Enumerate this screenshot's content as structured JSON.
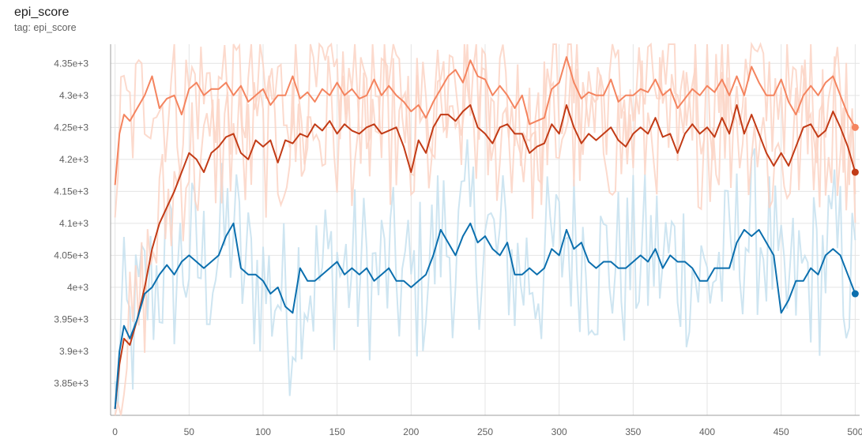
{
  "card": {
    "title": "epi_score",
    "tag": "tag: epi_score"
  },
  "colors": {
    "light_orange": "#f4845f",
    "dark_orange": "#c23b16",
    "blue": "#0b6fae",
    "light_orange_raw": "#fcd3c4",
    "blue_raw": "#c6e0ee",
    "grid": "#e4e4e4",
    "axis_tick_text": "#616161"
  },
  "chart_data": {
    "type": "line",
    "title": "epi_score",
    "xlabel": "",
    "ylabel": "",
    "xlim": [
      -3,
      503
    ],
    "ylim": [
      3800,
      4380
    ],
    "x_ticks": [
      0,
      50,
      100,
      150,
      200,
      250,
      300,
      350,
      400,
      450,
      500
    ],
    "y_ticks": [
      3850,
      3900,
      3950,
      4000,
      4050,
      4100,
      4150,
      4200,
      4250,
      4300,
      4350
    ],
    "y_tick_labels": [
      "3.85e+3",
      "3.9e+3",
      "3.95e+3",
      "4e+3",
      "4.05e+3",
      "4.1e+3",
      "4.15e+3",
      "4.2e+3",
      "4.25e+3",
      "4.3e+3",
      "4.35e+3"
    ],
    "grid": true,
    "legend": "none",
    "series": [
      {
        "color": "#f4845f",
        "raw_color": "#fcd3c4",
        "x": [
          0,
          3,
          6,
          10,
          15,
          20,
          25,
          30,
          35,
          40,
          45,
          50,
          55,
          60,
          65,
          70,
          75,
          80,
          85,
          90,
          95,
          100,
          105,
          110,
          115,
          120,
          125,
          130,
          135,
          140,
          145,
          150,
          155,
          160,
          165,
          170,
          175,
          180,
          185,
          190,
          195,
          200,
          205,
          210,
          215,
          220,
          225,
          230,
          235,
          240,
          245,
          250,
          255,
          260,
          265,
          270,
          275,
          280,
          285,
          290,
          295,
          300,
          305,
          310,
          315,
          320,
          325,
          330,
          335,
          340,
          345,
          350,
          355,
          360,
          365,
          370,
          375,
          380,
          385,
          390,
          395,
          400,
          405,
          410,
          415,
          420,
          425,
          430,
          435,
          440,
          445,
          450,
          455,
          460,
          465,
          470,
          475,
          480,
          485,
          490,
          495,
          500
        ],
        "values": [
          4160,
          4240,
          4270,
          4260,
          4280,
          4300,
          4330,
          4280,
          4295,
          4300,
          4270,
          4310,
          4320,
          4300,
          4310,
          4310,
          4320,
          4300,
          4315,
          4290,
          4300,
          4310,
          4285,
          4300,
          4300,
          4330,
          4295,
          4305,
          4290,
          4310,
          4300,
          4320,
          4300,
          4310,
          4295,
          4300,
          4325,
          4300,
          4315,
          4300,
          4290,
          4275,
          4285,
          4265,
          4290,
          4310,
          4330,
          4340,
          4320,
          4355,
          4330,
          4325,
          4300,
          4315,
          4300,
          4280,
          4300,
          4255,
          4260,
          4265,
          4310,
          4320,
          4360,
          4320,
          4295,
          4305,
          4300,
          4300,
          4325,
          4290,
          4300,
          4300,
          4310,
          4305,
          4325,
          4300,
          4310,
          4280,
          4295,
          4310,
          4300,
          4315,
          4305,
          4325,
          4300,
          4330,
          4300,
          4345,
          4320,
          4300,
          4300,
          4325,
          4290,
          4270,
          4300,
          4315,
          4300,
          4320,
          4330,
          4300,
          4270,
          4250
        ]
      },
      {
        "color": "#c23b16",
        "raw_color": "#fcd3c4",
        "x": [
          0,
          3,
          6,
          10,
          15,
          20,
          25,
          30,
          35,
          40,
          45,
          50,
          55,
          60,
          65,
          70,
          75,
          80,
          85,
          90,
          95,
          100,
          105,
          110,
          115,
          120,
          125,
          130,
          135,
          140,
          145,
          150,
          155,
          160,
          165,
          170,
          175,
          180,
          185,
          190,
          195,
          200,
          205,
          210,
          215,
          220,
          225,
          230,
          235,
          240,
          245,
          250,
          255,
          260,
          265,
          270,
          275,
          280,
          285,
          290,
          295,
          300,
          305,
          310,
          315,
          320,
          325,
          330,
          335,
          340,
          345,
          350,
          355,
          360,
          365,
          370,
          375,
          380,
          385,
          390,
          395,
          400,
          405,
          410,
          415,
          420,
          425,
          430,
          435,
          440,
          445,
          450,
          455,
          460,
          465,
          470,
          475,
          480,
          485,
          490,
          495,
          500
        ],
        "values": [
          3810,
          3880,
          3920,
          3910,
          3950,
          4000,
          4060,
          4100,
          4125,
          4150,
          4180,
          4210,
          4200,
          4180,
          4210,
          4220,
          4235,
          4240,
          4210,
          4200,
          4230,
          4220,
          4230,
          4195,
          4230,
          4225,
          4240,
          4235,
          4255,
          4245,
          4260,
          4240,
          4255,
          4245,
          4240,
          4250,
          4255,
          4240,
          4245,
          4250,
          4220,
          4180,
          4230,
          4210,
          4250,
          4270,
          4270,
          4260,
          4275,
          4285,
          4250,
          4240,
          4225,
          4250,
          4255,
          4240,
          4240,
          4210,
          4220,
          4225,
          4255,
          4240,
          4285,
          4250,
          4225,
          4240,
          4230,
          4240,
          4250,
          4230,
          4220,
          4240,
          4250,
          4240,
          4265,
          4235,
          4240,
          4210,
          4240,
          4255,
          4240,
          4250,
          4235,
          4265,
          4240,
          4285,
          4240,
          4270,
          4240,
          4210,
          4190,
          4210,
          4190,
          4220,
          4250,
          4255,
          4235,
          4245,
          4275,
          4250,
          4220,
          4180
        ]
      },
      {
        "color": "#0b6fae",
        "raw_color": "#c6e0ee",
        "x": [
          0,
          3,
          6,
          10,
          15,
          20,
          25,
          30,
          35,
          40,
          45,
          50,
          55,
          60,
          65,
          70,
          75,
          80,
          85,
          90,
          95,
          100,
          105,
          110,
          115,
          120,
          125,
          130,
          135,
          140,
          145,
          150,
          155,
          160,
          165,
          170,
          175,
          180,
          185,
          190,
          195,
          200,
          205,
          210,
          215,
          220,
          225,
          230,
          235,
          240,
          245,
          250,
          255,
          260,
          265,
          270,
          275,
          280,
          285,
          290,
          295,
          300,
          305,
          310,
          315,
          320,
          325,
          330,
          335,
          340,
          345,
          350,
          355,
          360,
          365,
          370,
          375,
          380,
          385,
          390,
          395,
          400,
          405,
          410,
          415,
          420,
          425,
          430,
          435,
          440,
          445,
          450,
          455,
          460,
          465,
          470,
          475,
          480,
          485,
          490,
          495,
          500
        ],
        "values": [
          3810,
          3900,
          3940,
          3920,
          3950,
          3990,
          4000,
          4020,
          4035,
          4020,
          4040,
          4050,
          4040,
          4030,
          4040,
          4050,
          4080,
          4100,
          4030,
          4020,
          4020,
          4010,
          3990,
          4000,
          3970,
          3960,
          4030,
          4010,
          4010,
          4020,
          4030,
          4040,
          4020,
          4030,
          4020,
          4030,
          4010,
          4020,
          4030,
          4010,
          4010,
          4000,
          4010,
          4020,
          4050,
          4090,
          4070,
          4050,
          4080,
          4100,
          4070,
          4080,
          4060,
          4050,
          4070,
          4020,
          4020,
          4030,
          4020,
          4030,
          4060,
          4050,
          4090,
          4060,
          4070,
          4040,
          4030,
          4040,
          4040,
          4030,
          4030,
          4040,
          4050,
          4040,
          4060,
          4030,
          4050,
          4040,
          4040,
          4030,
          4010,
          4010,
          4030,
          4030,
          4030,
          4070,
          4090,
          4080,
          4090,
          4070,
          4050,
          3960,
          3980,
          4010,
          4010,
          4030,
          4020,
          4050,
          4060,
          4050,
          4020,
          3990
        ]
      }
    ]
  }
}
